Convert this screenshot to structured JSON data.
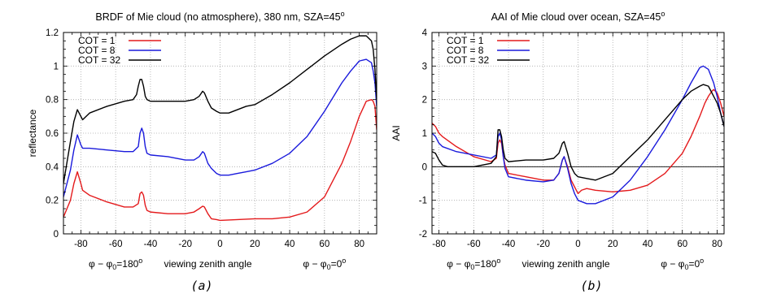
{
  "chart_data": [
    {
      "type": "line",
      "title": "BRDF of Mie cloud (no atmosphere), 380 nm, SZA=45",
      "title_superscript": "o",
      "xlabel": "viewing zenith angle",
      "x_annotation_left": "φ − φ",
      "x_annotation_left_sub": "0",
      "x_annotation_left_tail": "=180",
      "x_annotation_right": "φ − φ",
      "x_annotation_right_sub": "0",
      "x_annotation_right_tail": "=0",
      "annotation_superscript": "o",
      "ylabel": "reflectance",
      "caption": "(a)",
      "xlim": [
        -90,
        90
      ],
      "ylim": [
        0,
        1.2
      ],
      "xticks": [
        -80,
        -60,
        -40,
        -20,
        0,
        20,
        40,
        60,
        80
      ],
      "yticks": [
        0,
        0.2,
        0.4,
        0.6,
        0.8,
        1,
        1.2
      ],
      "ytick_labels": [
        "0",
        "0.2",
        "0.4",
        "0.6",
        "0.8",
        "1",
        "1.2"
      ],
      "grid": true,
      "legend_position": "top-left",
      "series": [
        {
          "name": "COT =  1",
          "color": "#e41a1c",
          "x": [
            -90,
            -86,
            -84,
            -82,
            -80,
            -79,
            -75,
            -65,
            -55,
            -50,
            -47,
            -46,
            -45,
            -44,
            -43,
            -42,
            -40,
            -30,
            -20,
            -15,
            -12,
            -10,
            -9,
            -7,
            -5,
            -2,
            0,
            10,
            20,
            30,
            40,
            50,
            60,
            70,
            75,
            80,
            84,
            87,
            88,
            89,
            90
          ],
          "y": [
            0.1,
            0.2,
            0.3,
            0.37,
            0.3,
            0.26,
            0.23,
            0.19,
            0.16,
            0.16,
            0.18,
            0.24,
            0.25,
            0.23,
            0.17,
            0.14,
            0.13,
            0.12,
            0.12,
            0.13,
            0.15,
            0.165,
            0.16,
            0.12,
            0.09,
            0.085,
            0.08,
            0.085,
            0.09,
            0.09,
            0.1,
            0.13,
            0.22,
            0.42,
            0.55,
            0.7,
            0.79,
            0.8,
            0.79,
            0.76,
            0.62
          ]
        },
        {
          "name": "COT =  8",
          "color": "#1a1adc",
          "x": [
            -90,
            -86,
            -84,
            -82,
            -80,
            -79,
            -75,
            -65,
            -55,
            -50,
            -47,
            -46,
            -45,
            -44,
            -43,
            -42,
            -40,
            -30,
            -20,
            -15,
            -12,
            -10,
            -9,
            -7,
            -5,
            -2,
            0,
            5,
            10,
            15,
            20,
            30,
            40,
            50,
            60,
            70,
            75,
            80,
            84,
            87,
            88,
            89,
            90
          ],
          "y": [
            0.22,
            0.38,
            0.5,
            0.59,
            0.53,
            0.51,
            0.51,
            0.5,
            0.49,
            0.49,
            0.52,
            0.6,
            0.63,
            0.6,
            0.52,
            0.48,
            0.47,
            0.46,
            0.44,
            0.44,
            0.46,
            0.49,
            0.48,
            0.42,
            0.39,
            0.36,
            0.35,
            0.35,
            0.36,
            0.37,
            0.38,
            0.42,
            0.48,
            0.58,
            0.73,
            0.9,
            0.97,
            1.03,
            1.04,
            1.02,
            0.97,
            0.9,
            0.76
          ]
        },
        {
          "name": "COT = 32",
          "color": "#000000",
          "x": [
            -90,
            -86,
            -84,
            -82,
            -80,
            -79,
            -75,
            -65,
            -55,
            -50,
            -48,
            -47,
            -46,
            -45,
            -44,
            -43,
            -42,
            -40,
            -30,
            -20,
            -15,
            -12,
            -10,
            -9,
            -7,
            -5,
            -2,
            0,
            5,
            10,
            15,
            20,
            30,
            40,
            50,
            60,
            70,
            75,
            80,
            84,
            87,
            88,
            89,
            90
          ],
          "y": [
            0.3,
            0.55,
            0.67,
            0.74,
            0.7,
            0.68,
            0.72,
            0.76,
            0.79,
            0.8,
            0.83,
            0.88,
            0.92,
            0.92,
            0.88,
            0.82,
            0.8,
            0.79,
            0.79,
            0.79,
            0.8,
            0.82,
            0.85,
            0.84,
            0.79,
            0.75,
            0.73,
            0.72,
            0.72,
            0.74,
            0.76,
            0.77,
            0.83,
            0.9,
            0.98,
            1.06,
            1.13,
            1.16,
            1.18,
            1.18,
            1.15,
            1.1,
            0.98,
            0.8
          ]
        }
      ]
    },
    {
      "type": "line",
      "title": "AAI of Mie cloud over ocean, SZA=45",
      "title_superscript": "o",
      "xlabel": "viewing zenith angle",
      "x_annotation_left": "φ − φ",
      "x_annotation_left_sub": "0",
      "x_annotation_left_tail": "=180",
      "x_annotation_right": "φ − φ",
      "x_annotation_right_sub": "0",
      "x_annotation_right_tail": "=0",
      "annotation_superscript": "o",
      "ylabel": "AAI",
      "caption": "(b)",
      "xlim": [
        -84,
        84
      ],
      "ylim": [
        -2,
        4
      ],
      "xticks": [
        -80,
        -60,
        -40,
        -20,
        0,
        20,
        40,
        60,
        80
      ],
      "yticks": [
        -2,
        -1,
        0,
        1,
        2,
        3,
        4
      ],
      "ytick_labels": [
        "-2",
        "-1",
        "0",
        "1",
        "2",
        "3",
        "4"
      ],
      "grid": true,
      "zero_line": true,
      "legend_position": "top-left",
      "series": [
        {
          "name": "COT =  1",
          "color": "#e41a1c",
          "x": [
            -84,
            -82,
            -80,
            -78,
            -70,
            -60,
            -50,
            -47,
            -46,
            -45,
            -44,
            -43,
            -42,
            -40,
            -30,
            -20,
            -14,
            -11,
            -9,
            -8,
            -6,
            -4,
            -2,
            0,
            2,
            5,
            10,
            20,
            30,
            40,
            50,
            60,
            65,
            70,
            73,
            75,
            77,
            78,
            80,
            82,
            84
          ],
          "y": [
            1.3,
            1.2,
            1.0,
            0.9,
            0.6,
            0.3,
            0.15,
            0.25,
            0.7,
            0.8,
            0.7,
            0.3,
            0.05,
            -0.2,
            -0.3,
            -0.4,
            -0.4,
            -0.2,
            0.2,
            0.3,
            0.0,
            -0.4,
            -0.6,
            -0.8,
            -0.7,
            -0.65,
            -0.7,
            -0.75,
            -0.7,
            -0.55,
            -0.2,
            0.4,
            0.9,
            1.5,
            1.9,
            2.1,
            2.25,
            2.3,
            2.2,
            1.9,
            1.5
          ]
        },
        {
          "name": "COT =  8",
          "color": "#1a1adc",
          "x": [
            -84,
            -82,
            -80,
            -78,
            -70,
            -60,
            -50,
            -47,
            -46,
            -45,
            -44,
            -43,
            -42,
            -40,
            -30,
            -20,
            -14,
            -11,
            -9,
            -8,
            -6,
            -4,
            -2,
            0,
            5,
            10,
            20,
            30,
            40,
            50,
            60,
            65,
            70,
            72,
            75,
            78,
            80,
            82,
            84
          ],
          "y": [
            1.0,
            0.9,
            0.7,
            0.6,
            0.45,
            0.35,
            0.25,
            0.35,
            0.9,
            1.0,
            0.8,
            0.3,
            -0.05,
            -0.3,
            -0.4,
            -0.45,
            -0.4,
            -0.2,
            0.2,
            0.3,
            -0.05,
            -0.5,
            -0.8,
            -1.0,
            -1.1,
            -1.1,
            -0.9,
            -0.4,
            0.3,
            1.1,
            2.0,
            2.5,
            2.95,
            3.0,
            2.9,
            2.5,
            2.1,
            1.6,
            1.2
          ]
        },
        {
          "name": "COT = 32",
          "color": "#000000",
          "x": [
            -84,
            -82,
            -80,
            -78,
            -75,
            -70,
            -60,
            -50,
            -47,
            -46,
            -45,
            -44,
            -43,
            -42,
            -40,
            -30,
            -20,
            -14,
            -11,
            -9,
            -8,
            -6,
            -4,
            -2,
            0,
            5,
            10,
            20,
            30,
            40,
            50,
            60,
            65,
            70,
            72,
            75,
            78,
            80,
            82,
            84
          ],
          "y": [
            0.45,
            0.4,
            0.2,
            0.05,
            0.0,
            0.0,
            0.0,
            0.1,
            0.3,
            1.1,
            1.1,
            0.9,
            0.5,
            0.25,
            0.15,
            0.2,
            0.2,
            0.25,
            0.4,
            0.7,
            0.75,
            0.4,
            0.0,
            -0.2,
            -0.3,
            -0.35,
            -0.4,
            -0.2,
            0.3,
            0.8,
            1.4,
            2.0,
            2.25,
            2.4,
            2.45,
            2.4,
            2.1,
            1.9,
            1.6,
            1.2
          ]
        }
      ]
    }
  ]
}
